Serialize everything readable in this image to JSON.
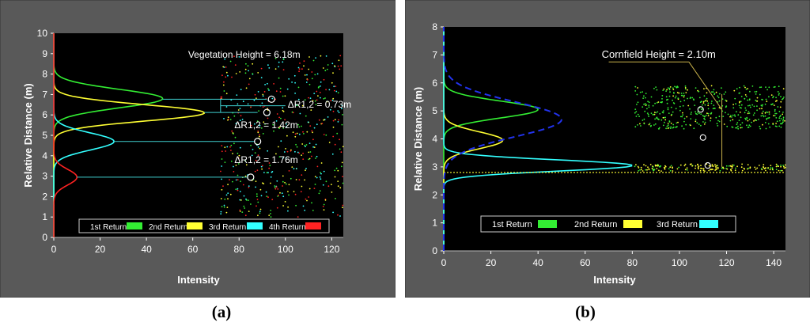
{
  "panels": [
    {
      "caption": "(a)"
    },
    {
      "caption": "(b)"
    }
  ],
  "colors": {
    "panel_bg": "#595959",
    "plot_bg": "#000000",
    "first": "#33ee33",
    "second": "#ffff33",
    "third": "#33ffff",
    "fourth": "#ff2222",
    "annotation": "#3fd0d0",
    "blue_dash": "#2233ee",
    "tan": "#c7b04a"
  },
  "chart_data": [
    {
      "type": "line",
      "xlabel": "Intensity",
      "ylabel": "Relative Distance (m)",
      "xlim": [
        0,
        125
      ],
      "ylim": [
        0,
        10
      ],
      "xticks": [
        "0",
        "20",
        "40",
        "60",
        "80",
        "100",
        "120"
      ],
      "yticks": [
        "0",
        "1",
        "2",
        "3",
        "4",
        "5",
        "6",
        "7",
        "8",
        "9",
        "10"
      ],
      "series": [
        {
          "name": "1st Return",
          "color": "#33ee33",
          "peak_distance": 6.8,
          "peak_intensity": 47,
          "sigma": 0.45
        },
        {
          "name": "2nd Return",
          "color": "#ffff33",
          "peak_distance": 6.1,
          "peak_intensity": 65,
          "sigma": 0.4
        },
        {
          "name": "3rd Return",
          "color": "#33ffff",
          "peak_distance": 4.7,
          "peak_intensity": 26,
          "sigma": 0.42
        },
        {
          "name": "4th Return",
          "color": "#ff2222",
          "peak_distance": 2.95,
          "peak_intensity": 10,
          "sigma": 0.38
        }
      ],
      "annotations": [
        {
          "text": "Vegetation Height = 6.18m"
        },
        {
          "text": "ΔR1,2 = 0.73m"
        },
        {
          "text": "ΔR1,2 = 1.42m"
        },
        {
          "text": "ΔR1,2 = 1.76m"
        }
      ],
      "point_cloud": {
        "x_range": [
          72,
          125
        ],
        "y_range": [
          1,
          8.9
        ]
      }
    },
    {
      "type": "line",
      "xlabel": "Intensity",
      "ylabel": "Relative Distance (m)",
      "xlim": [
        0,
        145
      ],
      "ylim": [
        0,
        8
      ],
      "xticks": [
        "0",
        "20",
        "40",
        "60",
        "80",
        "100",
        "120",
        "140"
      ],
      "yticks": [
        "0",
        "1",
        "2",
        "3",
        "4",
        "5",
        "6",
        "7",
        "8"
      ],
      "series": [
        {
          "name": "1st Return",
          "color": "#33ee33",
          "peak_distance": 5.05,
          "peak_intensity": 40,
          "sigma": 0.3
        },
        {
          "name": "2nd Return",
          "color": "#ffff33",
          "peak_distance": 3.95,
          "peak_intensity": 25,
          "sigma": 0.3
        },
        {
          "name": "3rd Return",
          "color": "#33ffff",
          "peak_distance": 3.05,
          "peak_intensity": 80,
          "sigma": 0.2
        }
      ],
      "annotations": [
        {
          "text": "Cornfield Height = 2.10m"
        }
      ],
      "ground_line_distance": 2.8,
      "point_cloud": {
        "x_range": [
          81,
          145
        ],
        "y_range": [
          2.9,
          5.9
        ]
      }
    }
  ]
}
